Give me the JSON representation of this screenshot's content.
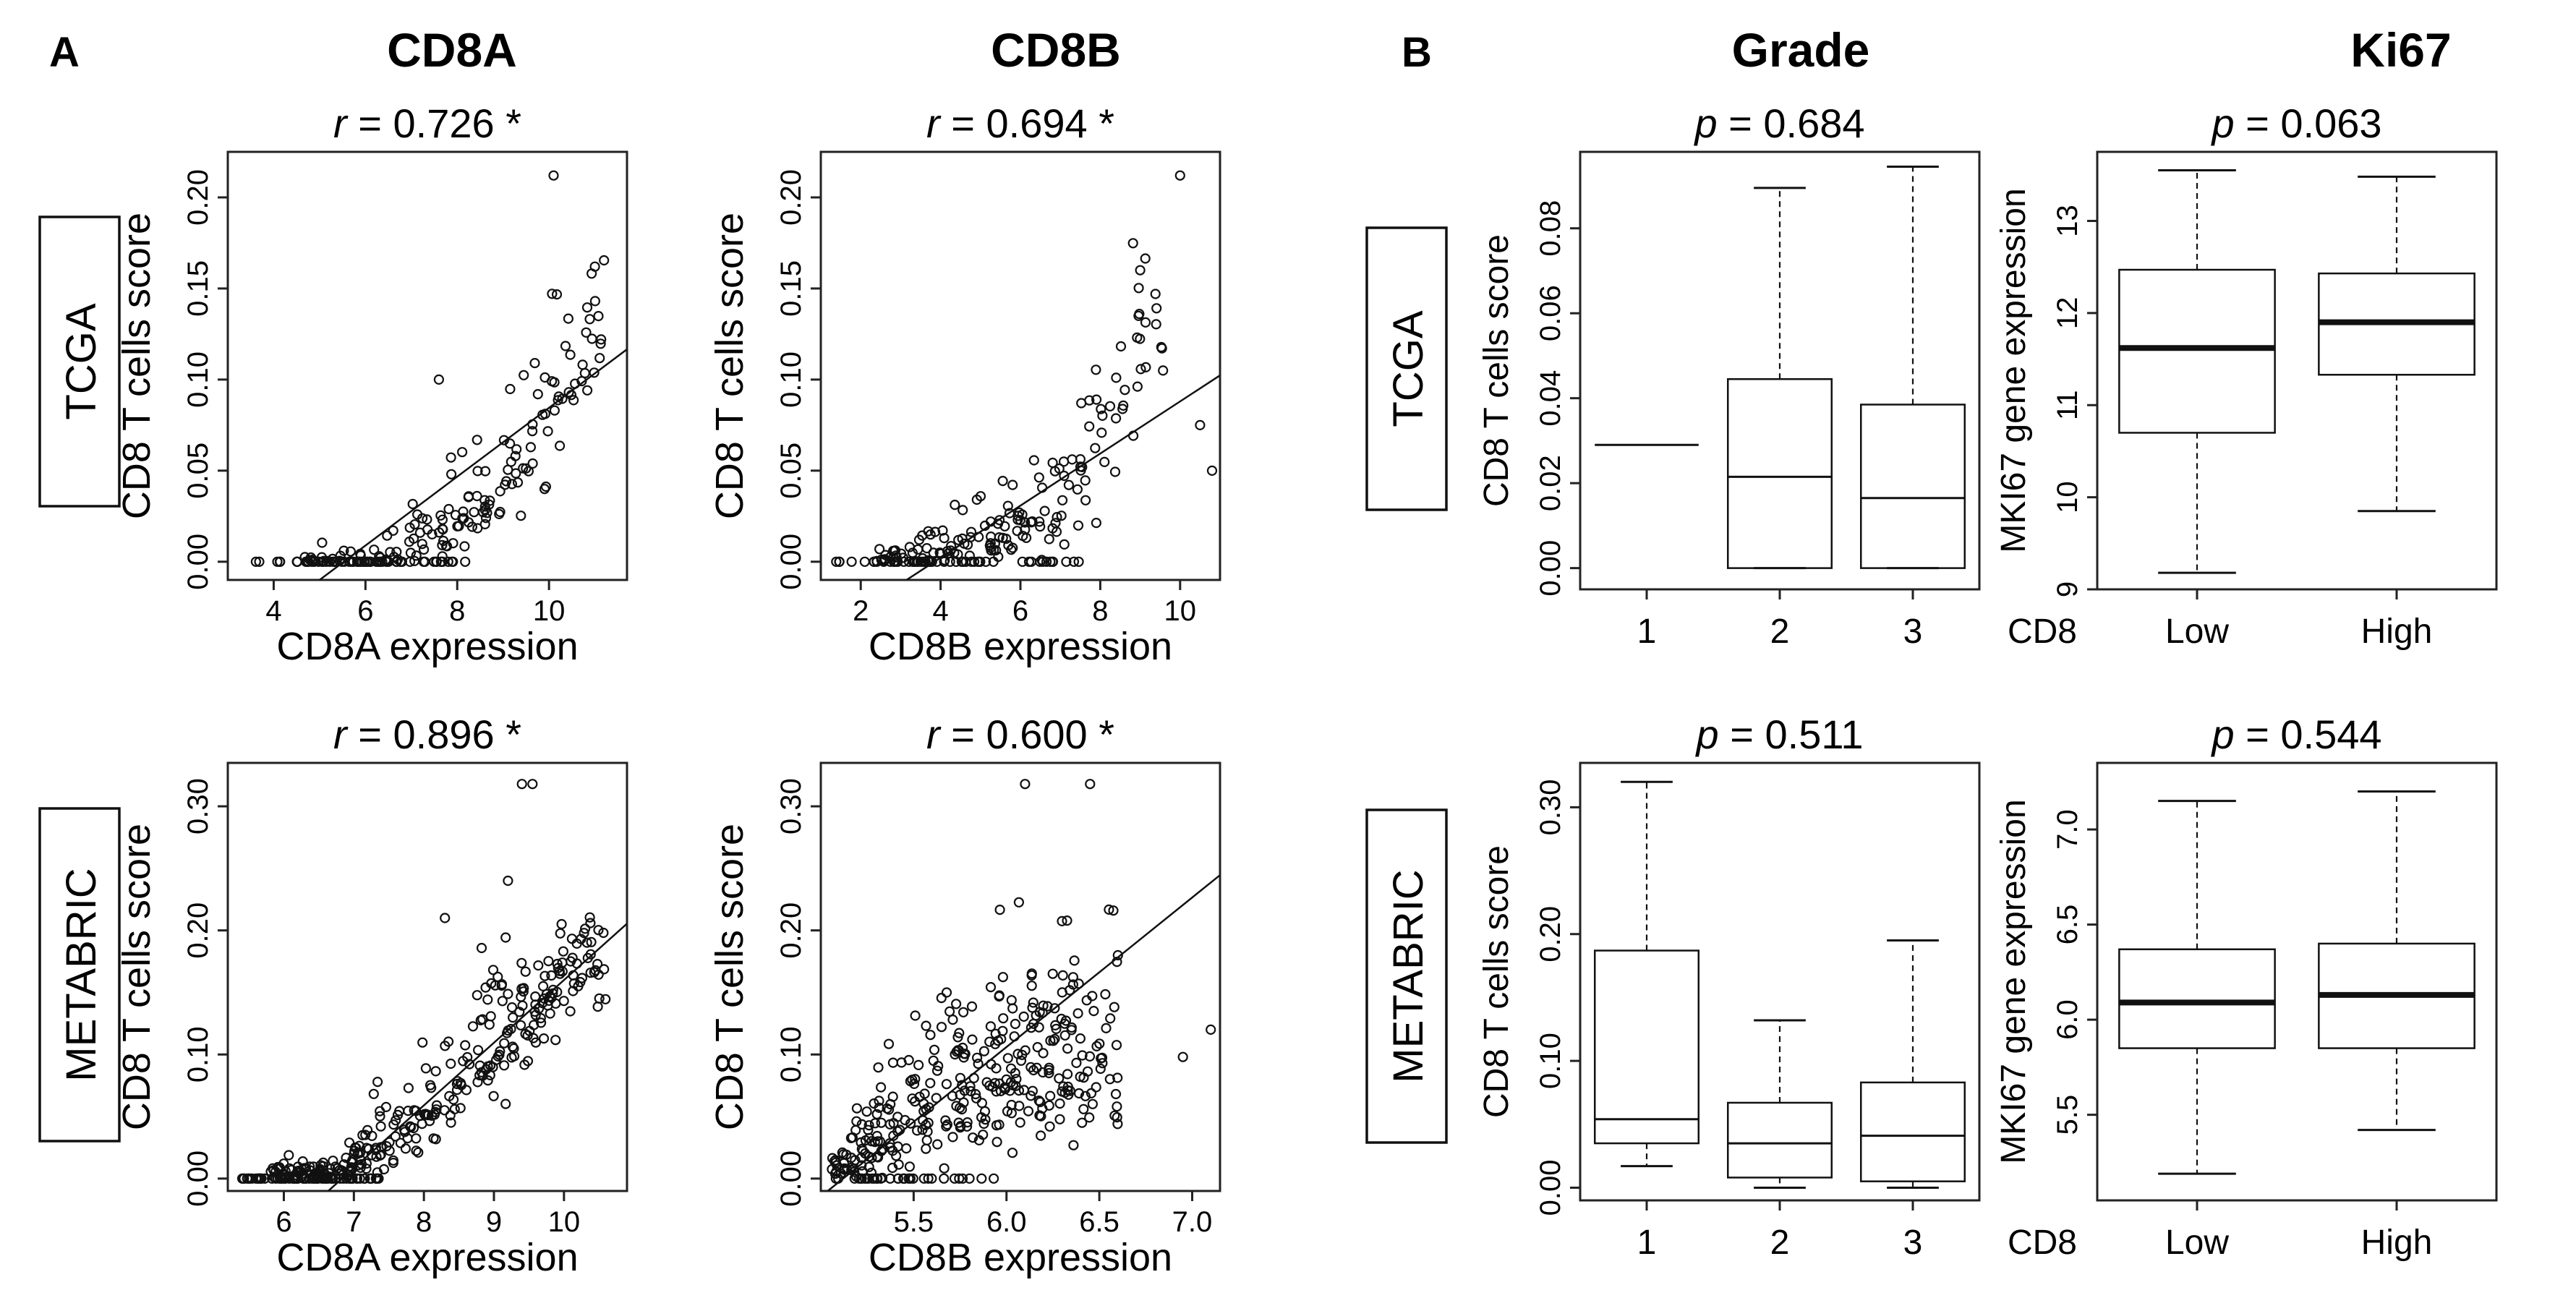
{
  "figure": {
    "panel_letters": [
      "A",
      "B"
    ],
    "column_titles": [
      "CD8A",
      "CD8B",
      "Grade",
      "Ki67"
    ],
    "row_labels": [
      "TCGA",
      "METABRIC"
    ]
  },
  "chart_data": [
    {
      "id": "scatter-tcga-cd8a",
      "type": "scatter",
      "title_value": "0.726",
      "title_suffix": "*",
      "title_var": "r",
      "xlabel": "CD8A expression",
      "ylabel": "CD8 T cells score",
      "xlim": [
        3.0,
        11.7
      ],
      "ylim": [
        -0.01,
        0.225
      ],
      "xticks": [
        4,
        6,
        8,
        10
      ],
      "yticks": [
        0.0,
        0.05,
        0.1,
        0.15,
        0.2
      ],
      "ytick_labels": [
        "0.00",
        "0.05",
        "0.10",
        "0.15",
        "0.20"
      ],
      "fit": {
        "slope": 0.0189,
        "intercept": -0.1045
      },
      "trend": [
        {
          "x": 4.5,
          "y": 0.0,
          "sd": 0.001
        },
        {
          "x": 6.5,
          "y": 0.0,
          "sd": 0.008
        },
        {
          "x": 7.5,
          "y": 0.012,
          "sd": 0.015
        },
        {
          "x": 8.5,
          "y": 0.03,
          "sd": 0.02
        },
        {
          "x": 9.3,
          "y": 0.05,
          "sd": 0.025
        },
        {
          "x": 10.3,
          "y": 0.1,
          "sd": 0.035
        },
        {
          "x": 11.3,
          "y": 0.15,
          "sd": 0.03
        }
      ],
      "xrange": [
        4.6,
        11.2
      ],
      "n": 175,
      "seed": 11,
      "floor_points": 42,
      "floor_range": [
        3.5,
        8.3
      ],
      "extra": [
        [
          10.1,
          0.212
        ],
        [
          11.0,
          0.162
        ],
        [
          7.6,
          0.1
        ]
      ]
    },
    {
      "id": "scatter-tcga-cd8b",
      "type": "scatter",
      "title_value": "0.694",
      "title_suffix": "*",
      "title_var": "r",
      "xlabel": "CD8B expression",
      "ylabel": "CD8 T cells score",
      "xlim": [
        1.0,
        11.0
      ],
      "ylim": [
        -0.01,
        0.225
      ],
      "xticks": [
        2,
        4,
        6,
        8,
        10
      ],
      "yticks": [
        0.0,
        0.05,
        0.1,
        0.15,
        0.2
      ],
      "ytick_labels": [
        "0.00",
        "0.05",
        "0.10",
        "0.15",
        "0.20"
      ],
      "fit": {
        "slope": 0.0143,
        "intercept": -0.055
      },
      "trend": [
        {
          "x": 2.0,
          "y": 0.0,
          "sd": 0.002
        },
        {
          "x": 4.0,
          "y": 0.005,
          "sd": 0.008
        },
        {
          "x": 5.5,
          "y": 0.015,
          "sd": 0.015
        },
        {
          "x": 7.0,
          "y": 0.035,
          "sd": 0.02
        },
        {
          "x": 8.0,
          "y": 0.07,
          "sd": 0.03
        },
        {
          "x": 9.0,
          "y": 0.12,
          "sd": 0.035
        }
      ],
      "xrange": [
        2.3,
        9.6
      ],
      "n": 170,
      "seed": 23,
      "floor_points": 40,
      "floor_range": [
        1.3,
        7.5
      ],
      "extra": [
        [
          10.0,
          0.212
        ],
        [
          10.5,
          0.075
        ],
        [
          10.8,
          0.05
        ],
        [
          9.0,
          0.16
        ]
      ]
    },
    {
      "id": "scatter-metabric-cd8a",
      "type": "scatter",
      "title_value": "0.896",
      "title_suffix": "*",
      "title_var": "r",
      "xlabel": "CD8A expression",
      "ylabel": "CD8 T cells score",
      "xlim": [
        5.2,
        10.9
      ],
      "ylim": [
        -0.01,
        0.335
      ],
      "xticks": [
        6,
        7,
        8,
        9,
        10
      ],
      "yticks": [
        0.0,
        0.1,
        0.2,
        0.3
      ],
      "ytick_labels": [
        "0.00",
        "0.10",
        "0.20",
        "0.30"
      ],
      "fit": {
        "slope": 0.0505,
        "intercept": -0.345
      },
      "trend": [
        {
          "x": 5.5,
          "y": 0.0,
          "sd": 0.002
        },
        {
          "x": 6.8,
          "y": 0.005,
          "sd": 0.01
        },
        {
          "x": 7.5,
          "y": 0.03,
          "sd": 0.025
        },
        {
          "x": 8.3,
          "y": 0.07,
          "sd": 0.03
        },
        {
          "x": 9.2,
          "y": 0.12,
          "sd": 0.035
        },
        {
          "x": 10.2,
          "y": 0.17,
          "sd": 0.025
        }
      ],
      "xrange": [
        5.8,
        10.6
      ],
      "n": 330,
      "seed": 37,
      "floor_points": 55,
      "floor_range": [
        5.4,
        7.4
      ],
      "extra": [
        [
          9.4,
          0.318
        ],
        [
          9.55,
          0.318
        ],
        [
          9.2,
          0.24
        ],
        [
          8.3,
          0.21
        ]
      ]
    },
    {
      "id": "scatter-metabric-cd8b",
      "type": "scatter",
      "title_value": "0.600",
      "title_suffix": "*",
      "title_var": "r",
      "xlabel": "CD8B expression",
      "ylabel": "CD8 T cells score",
      "xlim": [
        5.0,
        7.15
      ],
      "ylim": [
        -0.01,
        0.335
      ],
      "xticks": [
        5.5,
        6.0,
        6.5,
        7.0
      ],
      "xtick_labels": [
        "5.5",
        "6.0",
        "6.5",
        "7.0"
      ],
      "yticks": [
        0.0,
        0.1,
        0.2,
        0.3
      ],
      "ytick_labels": [
        "0.00",
        "0.10",
        "0.20",
        "0.30"
      ],
      "fit": {
        "slope": 0.1205,
        "intercept": -0.617
      },
      "trend": [
        {
          "x": 5.1,
          "y": 0.01,
          "sd": 0.01
        },
        {
          "x": 5.35,
          "y": 0.03,
          "sd": 0.035
        },
        {
          "x": 5.6,
          "y": 0.06,
          "sd": 0.05
        },
        {
          "x": 5.9,
          "y": 0.08,
          "sd": 0.055
        },
        {
          "x": 6.3,
          "y": 0.1,
          "sd": 0.05
        }
      ],
      "xrange": [
        5.05,
        6.6
      ],
      "n": 340,
      "seed": 53,
      "floor_points": 30,
      "floor_range": [
        5.05,
        5.9
      ],
      "extra": [
        [
          6.1,
          0.318
        ],
        [
          6.45,
          0.318
        ],
        [
          6.95,
          0.098
        ],
        [
          7.1,
          0.12
        ],
        [
          6.6,
          0.18
        ],
        [
          6.3,
          0.15
        ]
      ]
    },
    {
      "id": "box-tcga-grade",
      "type": "box",
      "title_value": "0.684",
      "title_var": "p",
      "ylabel": "CD8 T cells score",
      "categories": [
        "1",
        "2",
        "3"
      ],
      "ylim": [
        -0.005,
        0.098
      ],
      "yticks": [
        0.0,
        0.02,
        0.04,
        0.06,
        0.08
      ],
      "ytick_labels": [
        "0.00",
        "0.02",
        "0.04",
        "0.06",
        "0.08"
      ],
      "median_bold": false,
      "boxes": [
        {
          "min": 0.029,
          "q1": 0.029,
          "median": 0.029,
          "q3": 0.029,
          "max": 0.029
        },
        {
          "min": 0.0,
          "q1": 0.0,
          "median": 0.0215,
          "q3": 0.0445,
          "max": 0.0895
        },
        {
          "min": 0.0,
          "q1": 0.0,
          "median": 0.0165,
          "q3": 0.0385,
          "max": 0.0945
        }
      ]
    },
    {
      "id": "box-tcga-ki67",
      "type": "box",
      "title_value": "0.063",
      "title_var": "p",
      "ylabel": "MKI67 gene expression",
      "group_label": "CD8",
      "categories": [
        "Low",
        "High"
      ],
      "ylim": [
        9.0,
        13.75
      ],
      "yticks": [
        9,
        10,
        11,
        12,
        13
      ],
      "ytick_labels": [
        "9",
        "10",
        "11",
        "12",
        "13"
      ],
      "median_bold": true,
      "boxes": [
        {
          "min": 9.18,
          "q1": 10.7,
          "median": 11.62,
          "q3": 12.47,
          "max": 13.55
        },
        {
          "min": 9.85,
          "q1": 11.33,
          "median": 11.9,
          "q3": 12.43,
          "max": 13.48
        }
      ]
    },
    {
      "id": "box-metabric-grade",
      "type": "box",
      "title_value": "0.511",
      "title_var": "p",
      "ylabel": "CD8 T cells score",
      "categories": [
        "1",
        "2",
        "3"
      ],
      "ylim": [
        -0.01,
        0.335
      ],
      "yticks": [
        0.0,
        0.1,
        0.2,
        0.3
      ],
      "ytick_labels": [
        "0.00",
        "0.10",
        "0.20",
        "0.30"
      ],
      "median_bold": false,
      "boxes": [
        {
          "min": 0.017,
          "q1": 0.035,
          "median": 0.054,
          "q3": 0.187,
          "max": 0.32
        },
        {
          "min": 0.0,
          "q1": 0.008,
          "median": 0.035,
          "q3": 0.067,
          "max": 0.132
        },
        {
          "min": 0.0,
          "q1": 0.005,
          "median": 0.041,
          "q3": 0.083,
          "max": 0.195
        }
      ]
    },
    {
      "id": "box-metabric-ki67",
      "type": "box",
      "title_value": "0.544",
      "title_var": "p",
      "ylabel": "MKI67 gene expression",
      "group_label": "CD8",
      "categories": [
        "Low",
        "High"
      ],
      "ylim": [
        5.05,
        7.35
      ],
      "yticks": [
        5.5,
        6.0,
        6.5,
        7.0
      ],
      "ytick_labels": [
        "5.5",
        "6.0",
        "6.5",
        "7.0"
      ],
      "median_bold": true,
      "boxes": [
        {
          "min": 5.19,
          "q1": 5.85,
          "median": 6.09,
          "q3": 6.37,
          "max": 7.15
        },
        {
          "min": 5.42,
          "q1": 5.85,
          "median": 6.13,
          "q3": 6.4,
          "max": 7.2
        }
      ]
    }
  ]
}
